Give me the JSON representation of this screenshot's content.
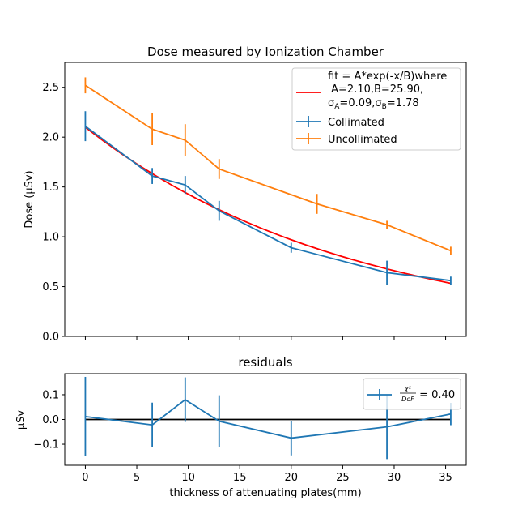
{
  "chart_data": [
    {
      "type": "line",
      "title": "Dose measured by Ionization Chamber",
      "xlabel": "",
      "ylabel": "Dose (µSv)",
      "xlim": [
        -2,
        37
      ],
      "ylim": [
        0,
        2.75
      ],
      "xticks": [
        "0",
        "5",
        "10",
        "15",
        "20",
        "25",
        "30",
        "35"
      ],
      "yticks": [
        "0.0",
        "0.5",
        "1.0",
        "1.5",
        "2.0",
        "2.5"
      ],
      "legend_position": "top-right",
      "legend": {
        "fit_line1": "fit = A*exp(-x/B)where",
        "fit_line2": " A=2.10,B=25.90,",
        "fit_line3_a": "σ",
        "fit_line3_a_sub": "A",
        "fit_line3_b": "=0.09,σ",
        "fit_line3_b_sub": "B",
        "fit_line3_c": "=1.78"
      },
      "series": [
        {
          "name": "Collimated",
          "color": "#1f77b4",
          "x": [
            0,
            6.5,
            9.7,
            13,
            20,
            29.3,
            35.5
          ],
          "y": [
            2.11,
            1.61,
            1.52,
            1.26,
            0.89,
            0.64,
            0.56
          ],
          "yerr": [
            0.15,
            0.08,
            0.09,
            0.1,
            0.05,
            0.12,
            0.04
          ]
        },
        {
          "name": "Uncollimated",
          "color": "#ff7f0e",
          "x": [
            0,
            6.5,
            9.7,
            13,
            22.5,
            29.3,
            35.5
          ],
          "y": [
            2.52,
            2.08,
            1.97,
            1.68,
            1.33,
            1.12,
            0.86
          ],
          "yerr": [
            0.08,
            0.16,
            0.16,
            0.1,
            0.1,
            0.04,
            0.04
          ]
        }
      ],
      "fit": {
        "type": "exponential",
        "A": 2.1,
        "B": 25.9,
        "color": "#ff0000"
      }
    },
    {
      "type": "line",
      "title": "residuals",
      "xlabel": "thickness of attenuating plates(mm)",
      "ylabel": "µSv",
      "xlim": [
        -2,
        37
      ],
      "ylim": [
        -0.185,
        0.185
      ],
      "xticks": [
        "0",
        "5",
        "10",
        "15",
        "20",
        "25",
        "30",
        "35"
      ],
      "yticks": [
        "−0.1",
        "0.0",
        "0.1"
      ],
      "legend_position": "top-right",
      "legend_label_num": "χ²",
      "legend_label_den": "DoF",
      "legend_label_value": " = 0.40",
      "reference_line": 0,
      "series": [
        {
          "name": "χ²/DoF = 0.40",
          "color": "#1f77b4",
          "x": [
            0,
            6.5,
            9.7,
            13,
            20,
            29.3,
            35.5
          ],
          "y": [
            0.012,
            -0.022,
            0.08,
            -0.007,
            -0.075,
            -0.03,
            0.022
          ],
          "yerr": [
            0.16,
            0.09,
            0.09,
            0.105,
            0.07,
            0.13,
            0.045
          ]
        }
      ]
    }
  ]
}
